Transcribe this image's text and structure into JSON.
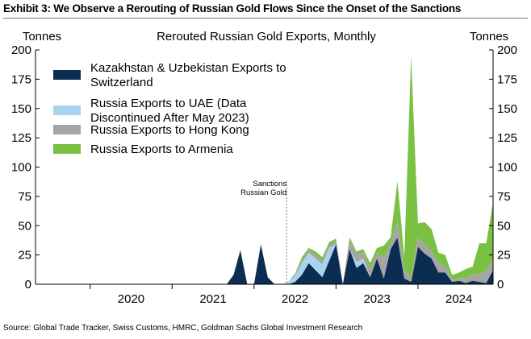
{
  "exhibit_title": "Exhibit 3: We Observe a Rerouting of Russian Gold Flows Since the Onset of the Sanctions",
  "source": "Source: Global Trade Tracker, Swiss Customs, HMRC, Goldman Sachs Global Investment Research",
  "chart_data": {
    "type": "area",
    "stacked": true,
    "title": "Rerouted Russian Gold Exports, Monthly",
    "ylabel_left": "Tonnes",
    "ylabel_right": "Tonnes",
    "ylim": [
      0,
      200
    ],
    "yticks": [
      0,
      25,
      50,
      75,
      100,
      125,
      150,
      175,
      200
    ],
    "x_range": [
      "2019-05",
      "2024-12"
    ],
    "x_ticks": [
      "2020",
      "2021",
      "2022",
      "2023",
      "2024"
    ],
    "grid": false,
    "legend_position": "top-left",
    "annotation": {
      "text": [
        "Sanctions",
        "Russian Gold"
      ],
      "x": "2022-06"
    },
    "x": [
      "2021-09",
      "2021-10",
      "2021-11",
      "2021-12",
      "2022-01",
      "2022-02",
      "2022-03",
      "2022-04",
      "2022-05",
      "2022-06",
      "2022-07",
      "2022-08",
      "2022-09",
      "2022-10",
      "2022-11",
      "2022-12",
      "2023-01",
      "2023-02",
      "2023-03",
      "2023-04",
      "2023-05",
      "2023-06",
      "2023-07",
      "2023-08",
      "2023-09",
      "2023-10",
      "2023-11",
      "2023-12",
      "2024-01",
      "2024-02",
      "2024-03",
      "2024-04",
      "2024-05",
      "2024-06",
      "2024-07",
      "2024-08",
      "2024-09",
      "2024-10",
      "2024-11",
      "2024-12"
    ],
    "series": [
      {
        "name": "Kazakhstan & Uzbekistan Exports to Switzerland",
        "color": "#0c2d52",
        "values": [
          0,
          8,
          29,
          0,
          0,
          34,
          6,
          0,
          0,
          0,
          2,
          8,
          18,
          12,
          6,
          20,
          34,
          0,
          30,
          14,
          18,
          6,
          22,
          5,
          30,
          40,
          5,
          2,
          32,
          26,
          22,
          10,
          10,
          2,
          3,
          1,
          3,
          2,
          1,
          12
        ]
      },
      {
        "name": "Russia Exports to UAE (Data Discontinued After May 2023)",
        "color": "#a9d3f0",
        "values": [
          0,
          0,
          0,
          0,
          0,
          0,
          0,
          0,
          0,
          2,
          5,
          10,
          9,
          10,
          11,
          11,
          0,
          0,
          0,
          5,
          4,
          0,
          0,
          0,
          0,
          0,
          0,
          0,
          0,
          0,
          0,
          0,
          0,
          0,
          0,
          0,
          0,
          0,
          0,
          0
        ]
      },
      {
        "name": "Russia Exports to Hong Kong",
        "color": "#a5a5a5",
        "values": [
          0,
          0,
          0,
          0,
          0,
          0,
          0,
          0,
          0,
          0,
          1,
          2,
          2,
          3,
          3,
          3,
          3,
          0,
          7,
          7,
          5,
          7,
          5,
          18,
          5,
          14,
          8,
          3,
          8,
          8,
          6,
          8,
          6,
          2,
          2,
          4,
          5,
          7,
          10,
          10
        ]
      },
      {
        "name": "Russia Exports to Armenia",
        "color": "#7ac143",
        "values": [
          0,
          0,
          0,
          0,
          0,
          0,
          0,
          0,
          0,
          0,
          1,
          3,
          2,
          3,
          3,
          2,
          2,
          0,
          3,
          2,
          3,
          5,
          4,
          10,
          5,
          34,
          10,
          190,
          12,
          19,
          19,
          9,
          9,
          4,
          5,
          8,
          7,
          26,
          24,
          48
        ]
      }
    ]
  }
}
